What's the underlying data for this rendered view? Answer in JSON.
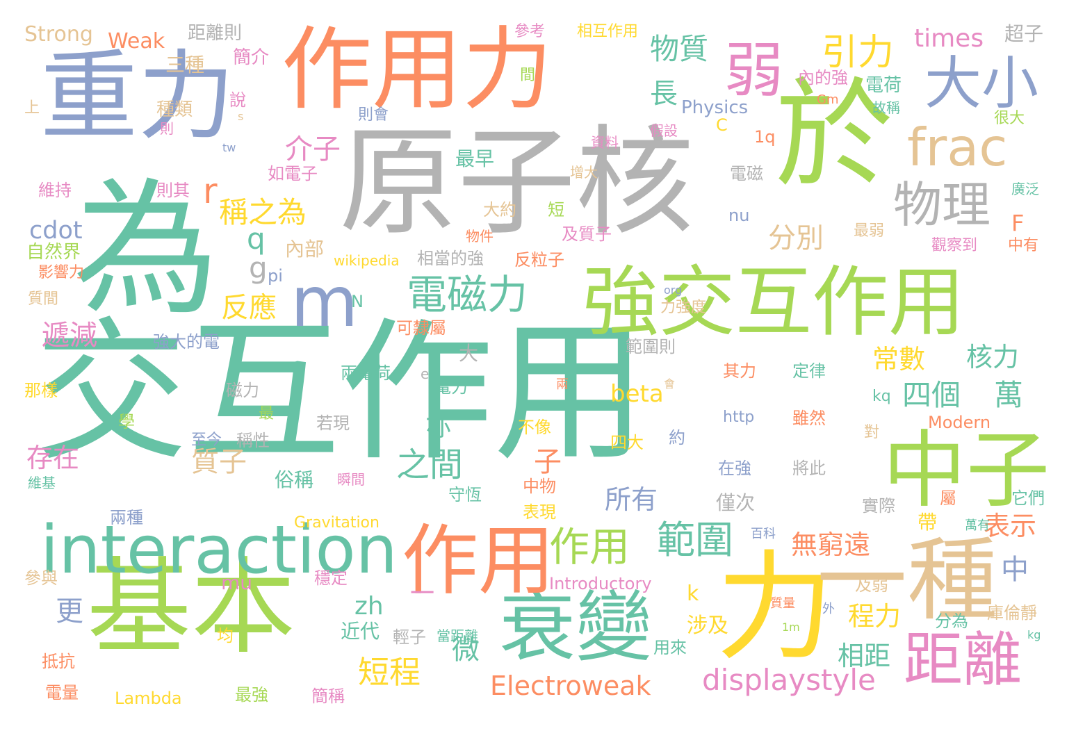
{
  "palette": {
    "teal": "#66c2a5",
    "orange": "#fc8d62",
    "blue": "#8da0cb",
    "pink": "#e78ac3",
    "green": "#a6d854",
    "yellow": "#ffd92f",
    "tan": "#e5c494",
    "gray": "#b3b3b3"
  },
  "words": [
    {
      "text": "交互作用",
      "color": "teal"
    },
    {
      "text": "原子核",
      "color": "gray"
    },
    {
      "text": "重力",
      "color": "blue"
    },
    {
      "text": "作用力",
      "color": "orange"
    },
    {
      "text": "為",
      "color": "teal"
    },
    {
      "text": "於",
      "color": "green"
    },
    {
      "text": "基本",
      "color": "green"
    },
    {
      "text": "力",
      "color": "yellow"
    },
    {
      "text": "強交互作用",
      "color": "green"
    },
    {
      "text": "一種",
      "color": "tan"
    },
    {
      "text": "中子",
      "color": "green"
    },
    {
      "text": "衰變",
      "color": "teal"
    },
    {
      "text": "作用",
      "color": "orange"
    },
    {
      "text": "interaction",
      "color": "teal"
    },
    {
      "text": "m",
      "color": "blue"
    },
    {
      "text": "距離",
      "color": "pink"
    },
    {
      "text": "弱",
      "color": "pink"
    },
    {
      "text": "大小",
      "color": "blue"
    },
    {
      "text": "frac",
      "color": "tan"
    },
    {
      "text": "物理",
      "color": "gray"
    },
    {
      "text": "一",
      "color": "pink"
    },
    {
      "text": "電磁力",
      "color": "teal"
    },
    {
      "text": "作用",
      "color": "green"
    },
    {
      "text": "範圍",
      "color": "teal"
    },
    {
      "text": "displaystyle",
      "color": "pink"
    },
    {
      "text": "Electroweak",
      "color": "orange"
    },
    {
      "text": "引力",
      "color": "yellow"
    },
    {
      "text": "物質",
      "color": "teal"
    },
    {
      "text": "稱之為",
      "color": "yellow"
    },
    {
      "text": "介子",
      "color": "pink"
    },
    {
      "text": "分別",
      "color": "tan"
    },
    {
      "text": "times",
      "color": "pink"
    },
    {
      "text": "長",
      "color": "teal"
    },
    {
      "text": "r",
      "color": "orange"
    },
    {
      "text": "q",
      "color": "teal"
    },
    {
      "text": "g",
      "color": "gray"
    },
    {
      "text": "cdot",
      "color": "blue"
    },
    {
      "text": "反應",
      "color": "yellow"
    },
    {
      "text": "遞減",
      "color": "pink"
    },
    {
      "text": "存在",
      "color": "pink"
    },
    {
      "text": "質子",
      "color": "tan"
    },
    {
      "text": "之間",
      "color": "teal"
    },
    {
      "text": "亦",
      "color": "teal"
    },
    {
      "text": "beta",
      "color": "yellow"
    },
    {
      "text": "四個",
      "color": "teal"
    },
    {
      "text": "萬",
      "color": "teal"
    },
    {
      "text": "常數",
      "color": "yellow"
    },
    {
      "text": "核力",
      "color": "teal"
    },
    {
      "text": "表示",
      "color": "orange"
    },
    {
      "text": "無窮遠",
      "color": "orange"
    },
    {
      "text": "所有",
      "color": "blue"
    },
    {
      "text": "中",
      "color": "blue"
    },
    {
      "text": "程力",
      "color": "yellow"
    },
    {
      "text": "相距",
      "color": "teal"
    },
    {
      "text": "短程",
      "color": "yellow"
    },
    {
      "text": "微",
      "color": "teal"
    },
    {
      "text": "mu",
      "color": "pink"
    },
    {
      "text": "zh",
      "color": "teal"
    },
    {
      "text": "k",
      "color": "yellow"
    },
    {
      "text": "更",
      "color": "blue"
    },
    {
      "text": "近代",
      "color": "teal"
    },
    {
      "text": "大",
      "color": "gray"
    },
    {
      "text": "子",
      "color": "orange"
    },
    {
      "text": "F",
      "color": "orange"
    },
    {
      "text": "Strong",
      "color": "tan"
    },
    {
      "text": "Weak",
      "color": "orange"
    },
    {
      "text": "距離則",
      "color": "gray"
    },
    {
      "text": "參考",
      "color": "pink"
    },
    {
      "text": "相互作用",
      "color": "yellow"
    },
    {
      "text": "超子",
      "color": "gray"
    },
    {
      "text": "三種",
      "color": "tan"
    },
    {
      "text": "簡介",
      "color": "pink"
    },
    {
      "text": "間",
      "color": "green"
    },
    {
      "text": "內的強",
      "color": "pink"
    },
    {
      "text": "電荷",
      "color": "teal"
    },
    {
      "text": "Physics",
      "color": "blue"
    },
    {
      "text": "Gm",
      "color": "orange"
    },
    {
      "text": "故稱",
      "color": "teal"
    },
    {
      "text": "說",
      "color": "pink"
    },
    {
      "text": "上",
      "color": "tan"
    },
    {
      "text": "種類",
      "color": "tan"
    },
    {
      "text": "s",
      "color": "tan"
    },
    {
      "text": "則會",
      "color": "blue"
    },
    {
      "text": "則",
      "color": "pink"
    },
    {
      "text": "C",
      "color": "yellow"
    },
    {
      "text": "假設",
      "color": "pink"
    },
    {
      "text": "很大",
      "color": "green"
    },
    {
      "text": "1q",
      "color": "orange"
    },
    {
      "text": "資料",
      "color": "pink"
    },
    {
      "text": "tw",
      "color": "blue"
    },
    {
      "text": "最早",
      "color": "teal"
    },
    {
      "text": "如電子",
      "color": "pink"
    },
    {
      "text": "增大",
      "color": "tan"
    },
    {
      "text": "電磁",
      "color": "gray"
    },
    {
      "text": "維持",
      "color": "pink"
    },
    {
      "text": "則其",
      "color": "pink"
    },
    {
      "text": "廣泛",
      "color": "teal"
    },
    {
      "text": "大約",
      "color": "tan"
    },
    {
      "text": "短",
      "color": "green"
    },
    {
      "text": "nu",
      "color": "blue"
    },
    {
      "text": "物件",
      "color": "orange"
    },
    {
      "text": "及質子",
      "color": "pink"
    },
    {
      "text": "最弱",
      "color": "tan"
    },
    {
      "text": "自然界",
      "color": "green"
    },
    {
      "text": "內部",
      "color": "tan"
    },
    {
      "text": "中有",
      "color": "orange"
    },
    {
      "text": "觀察到",
      "color": "pink"
    },
    {
      "text": "wikipedia",
      "color": "yellow"
    },
    {
      "text": "相當的強",
      "color": "gray"
    },
    {
      "text": "反粒子",
      "color": "orange"
    },
    {
      "text": "影響力",
      "color": "orange"
    },
    {
      "text": "pi",
      "color": "blue"
    },
    {
      "text": "質間",
      "color": "tan"
    },
    {
      "text": "org",
      "color": "blue"
    },
    {
      "text": "力強度",
      "color": "tan"
    },
    {
      "text": "N",
      "color": "teal"
    },
    {
      "text": "強大的電",
      "color": "blue"
    },
    {
      "text": "可隸屬",
      "color": "orange"
    },
    {
      "text": "範圍則",
      "color": "gray"
    },
    {
      "text": "兩電荷",
      "color": "teal"
    },
    {
      "text": "其力",
      "color": "orange"
    },
    {
      "text": "定律",
      "color": "teal"
    },
    {
      "text": "e",
      "color": "gray"
    },
    {
      "text": "電力",
      "color": "teal"
    },
    {
      "text": "會",
      "color": "tan"
    },
    {
      "text": "那樣",
      "color": "yellow"
    },
    {
      "text": "磁力",
      "color": "gray"
    },
    {
      "text": "兩",
      "color": "orange"
    },
    {
      "text": "kq",
      "color": "teal"
    },
    {
      "text": "最",
      "color": "green"
    },
    {
      "text": "學",
      "color": "green"
    },
    {
      "text": "若現",
      "color": "gray"
    },
    {
      "text": "不像",
      "color": "yellow"
    },
    {
      "text": "http",
      "color": "blue"
    },
    {
      "text": "雖然",
      "color": "orange"
    },
    {
      "text": "Modern",
      "color": "orange"
    },
    {
      "text": "稱性",
      "color": "gray"
    },
    {
      "text": "至今",
      "color": "blue"
    },
    {
      "text": "四大",
      "color": "yellow"
    },
    {
      "text": "約",
      "color": "blue"
    },
    {
      "text": "對",
      "color": "tan"
    },
    {
      "text": "在強",
      "color": "blue"
    },
    {
      "text": "將此",
      "color": "gray"
    },
    {
      "text": "維基",
      "color": "teal"
    },
    {
      "text": "俗稱",
      "color": "teal"
    },
    {
      "text": "瞬間",
      "color": "pink"
    },
    {
      "text": "中物",
      "color": "orange"
    },
    {
      "text": "守恆",
      "color": "teal"
    },
    {
      "text": "屬",
      "color": "orange"
    },
    {
      "text": "它們",
      "color": "teal"
    },
    {
      "text": "僅次",
      "color": "gray"
    },
    {
      "text": "表現",
      "color": "yellow"
    },
    {
      "text": "實際",
      "color": "gray"
    },
    {
      "text": "兩種",
      "color": "blue"
    },
    {
      "text": "Gravitation",
      "color": "yellow"
    },
    {
      "text": "帶",
      "color": "yellow"
    },
    {
      "text": "萬有",
      "color": "teal"
    },
    {
      "text": "百科",
      "color": "blue"
    },
    {
      "text": "參與",
      "color": "tan"
    },
    {
      "text": "穩定",
      "color": "pink"
    },
    {
      "text": "Introductory",
      "color": "pink"
    },
    {
      "text": "及弱",
      "color": "tan"
    },
    {
      "text": "質量",
      "color": "orange"
    },
    {
      "text": "外",
      "color": "blue"
    },
    {
      "text": "庫倫靜",
      "color": "tan"
    },
    {
      "text": "1m",
      "color": "green"
    },
    {
      "text": "分為",
      "color": "teal"
    },
    {
      "text": "輕子",
      "color": "gray"
    },
    {
      "text": "當距離",
      "color": "teal"
    },
    {
      "text": "均",
      "color": "yellow"
    },
    {
      "text": "涉及",
      "color": "yellow"
    },
    {
      "text": "kg",
      "color": "teal"
    },
    {
      "text": "抵抗",
      "color": "orange"
    },
    {
      "text": "用來",
      "color": "teal"
    },
    {
      "text": "電量",
      "color": "orange"
    },
    {
      "text": "Lambda",
      "color": "yellow"
    },
    {
      "text": "最強",
      "color": "green"
    },
    {
      "text": "簡稱",
      "color": "pink"
    }
  ]
}
